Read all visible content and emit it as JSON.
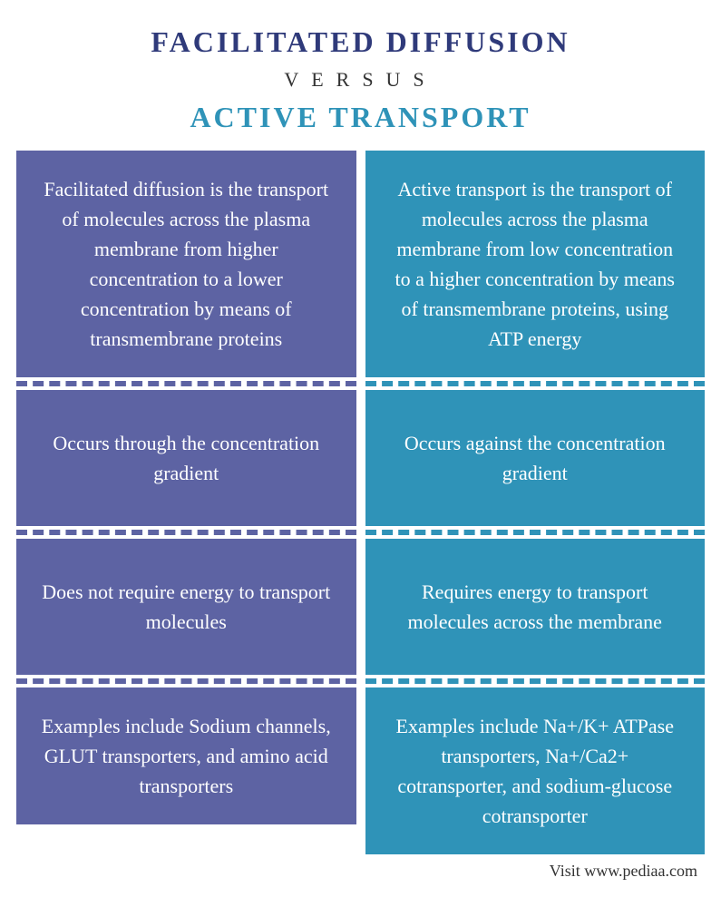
{
  "header": {
    "title_top": "FACILITATED DIFFUSION",
    "versus": "VERSUS",
    "title_bottom": "ACTIVE TRANSPORT",
    "title_top_color": "#2f3a7a",
    "title_bottom_color": "#2f93b8"
  },
  "left": {
    "bg_color": "#5d63a3",
    "divider_color": "#5d63a3",
    "cells": [
      "Facilitated diffusion is the transport of molecules across the plasma membrane from higher concentration to a lower concentration by means of transmembrane proteins",
      "Occurs through the concentration gradient",
      "Does not require energy to transport molecules",
      "Examples include Sodium channels, GLUT transporters, and amino acid transporters"
    ]
  },
  "right": {
    "bg_color": "#2f93b8",
    "divider_color": "#2f93b8",
    "cells": [
      "Active transport is the transport of molecules across the plasma membrane from low concentration to a higher concentration by means of transmembrane proteins, using ATP energy",
      "Occurs against the concentration gradient",
      "Requires energy to transport molecules across the membrane",
      "Examples include Na+/K+ ATPase transporters, Na+/Ca2+ cotransporter, and sodium-glucose cotransporter"
    ]
  },
  "footer": {
    "text": "Visit www.pediaa.com",
    "color": "#333333"
  }
}
